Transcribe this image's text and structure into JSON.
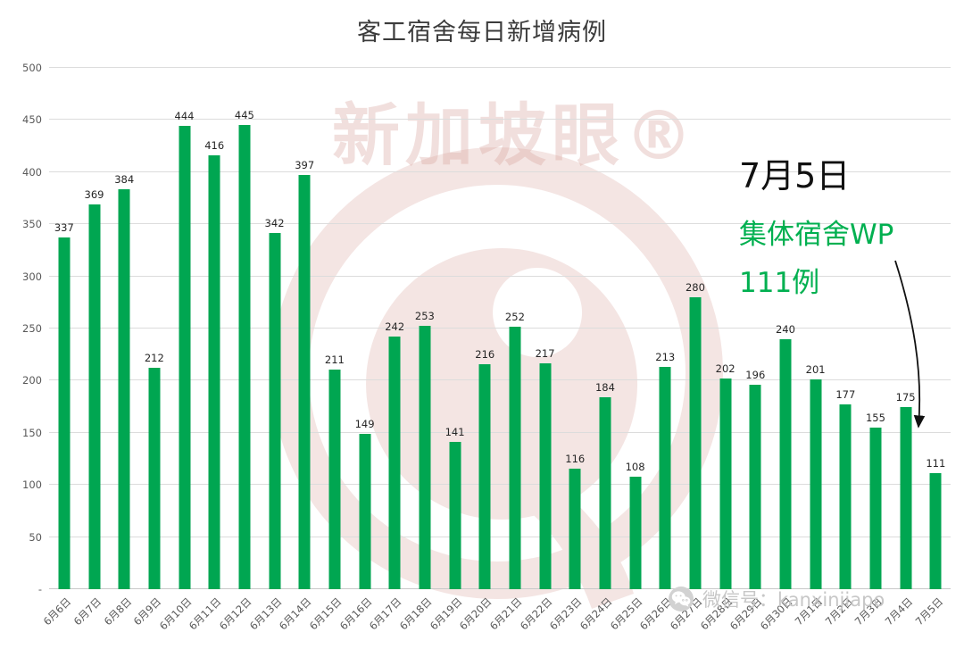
{
  "chart_data": {
    "type": "bar",
    "title": "客工宿舍每日新增病例",
    "categories": [
      "6月6日",
      "6月7日",
      "6月8日",
      "6月9日",
      "6月10日",
      "6月11日",
      "6月12日",
      "6月13日",
      "6月14日",
      "6月15日",
      "6月16日",
      "6月17日",
      "6月18日",
      "6月19日",
      "6月20日",
      "6月21日",
      "6月22日",
      "6月23日",
      "6月24日",
      "6月25日",
      "6月26日",
      "6月27日",
      "6月28日",
      "6月29日",
      "6月30日",
      "7月1日",
      "7月2日",
      "7月3日",
      "7月4日",
      "7月5日"
    ],
    "values": [
      337,
      369,
      384,
      212,
      444,
      416,
      445,
      342,
      397,
      211,
      149,
      242,
      253,
      141,
      216,
      252,
      217,
      116,
      184,
      108,
      213,
      280,
      202,
      196,
      240,
      201,
      177,
      155,
      175,
      111
    ],
    "xlabel": "",
    "ylabel": "",
    "ylim": [
      0,
      500
    ],
    "ytick_step": 50,
    "yticks": [
      "-",
      "50",
      "100",
      "150",
      "200",
      "250",
      "300",
      "350",
      "400",
      "450",
      "500"
    ],
    "grid": true,
    "legend": "none",
    "bar_color": "#00A651"
  },
  "annotation": {
    "line1": "7月5日",
    "line2": "集体宿舍WP",
    "line3": "111例",
    "line1_color": "#111111",
    "highlight_color": "#00B050"
  },
  "watermark": {
    "text": "新加坡眼®"
  },
  "footer": {
    "wechat_label": "微信号：kanxinjiapo"
  }
}
